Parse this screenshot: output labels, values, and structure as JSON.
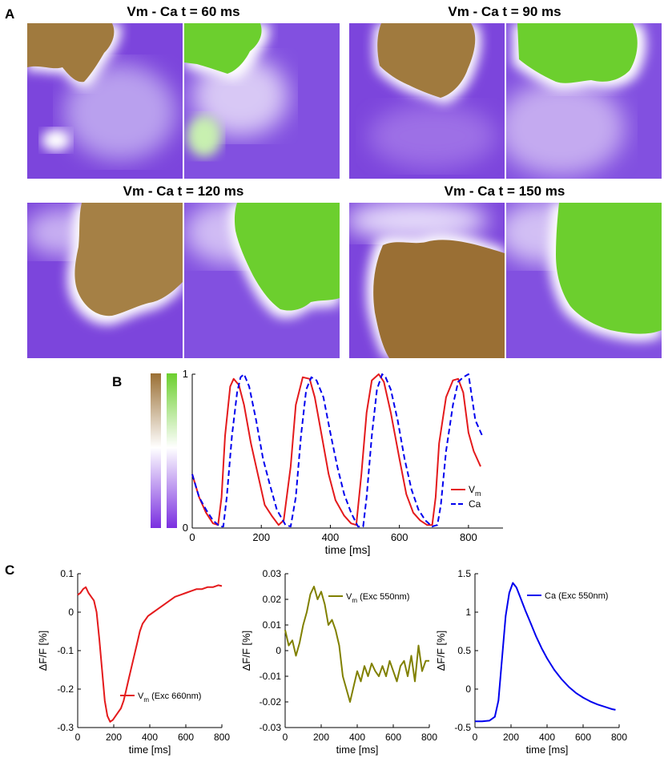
{
  "panel_labels": {
    "a": "A",
    "b": "B",
    "c": "C"
  },
  "panel_a": {
    "panels": [
      {
        "title": "Vm - Ca  t = 60 ms"
      },
      {
        "title": "Vm - Ca  t = 90 ms"
      },
      {
        "title": "Vm - Ca  t = 120 ms"
      },
      {
        "title": "Vm - Ca  t = 150 ms"
      }
    ],
    "colors": {
      "vm": "#9a6f34",
      "ca": "#6ccf2e",
      "low": "#7a3fd8",
      "mid": "#ffffff"
    }
  },
  "chart_data": [
    {
      "type": "line",
      "id": "B",
      "xlabel": "time [ms]",
      "ylabel": "",
      "xlim": [
        0,
        900
      ],
      "ylim": [
        0,
        1
      ],
      "xticks": [
        "0",
        "200",
        "400",
        "600",
        "800"
      ],
      "yticks": [
        "0",
        "1"
      ],
      "legend": "bottom-right",
      "series": [
        {
          "name": "V",
          "sub": "m",
          "color": "#e41a1c",
          "dash": "solid",
          "x": [
            0,
            20,
            40,
            60,
            75,
            85,
            95,
            110,
            120,
            135,
            150,
            170,
            190,
            210,
            230,
            250,
            265,
            285,
            300,
            320,
            340,
            355,
            375,
            395,
            415,
            440,
            460,
            475,
            490,
            505,
            520,
            540,
            555,
            575,
            600,
            620,
            640,
            660,
            680,
            695,
            705,
            715,
            735,
            755,
            770,
            785,
            800,
            815,
            835
          ],
          "y": [
            0.35,
            0.2,
            0.1,
            0.03,
            0.02,
            0.2,
            0.6,
            0.92,
            0.97,
            0.93,
            0.8,
            0.55,
            0.35,
            0.15,
            0.08,
            0.02,
            0.05,
            0.4,
            0.8,
            0.98,
            0.97,
            0.85,
            0.6,
            0.35,
            0.18,
            0.08,
            0.03,
            0.02,
            0.35,
            0.75,
            0.96,
            1.0,
            0.95,
            0.75,
            0.45,
            0.22,
            0.1,
            0.05,
            0.02,
            0.02,
            0.2,
            0.55,
            0.85,
            0.96,
            0.97,
            0.88,
            0.62,
            0.5,
            0.4
          ]
        },
        {
          "name": "Ca",
          "color": "#0000ee",
          "dash": "dashed",
          "x": [
            0,
            20,
            40,
            60,
            80,
            90,
            100,
            115,
            130,
            140,
            150,
            165,
            185,
            205,
            225,
            245,
            270,
            285,
            300,
            315,
            330,
            345,
            360,
            380,
            400,
            420,
            440,
            460,
            480,
            495,
            505,
            520,
            535,
            550,
            560,
            575,
            595,
            615,
            635,
            655,
            675,
            695,
            710,
            720,
            735,
            755,
            770,
            785,
            800,
            820,
            840
          ],
          "y": [
            0.35,
            0.2,
            0.12,
            0.05,
            0.01,
            0.01,
            0.2,
            0.6,
            0.88,
            0.98,
            1.0,
            0.92,
            0.7,
            0.45,
            0.28,
            0.12,
            0.02,
            0.01,
            0.2,
            0.6,
            0.9,
            0.98,
            0.96,
            0.85,
            0.62,
            0.4,
            0.22,
            0.1,
            0.01,
            0.01,
            0.2,
            0.6,
            0.9,
            1.0,
            0.98,
            0.9,
            0.7,
            0.45,
            0.25,
            0.12,
            0.05,
            0.01,
            0.02,
            0.15,
            0.5,
            0.8,
            0.95,
            0.98,
            1.0,
            0.7,
            0.6
          ]
        }
      ]
    },
    {
      "type": "line",
      "id": "C1",
      "xlabel": "time [ms]",
      "ylabel": "ΔF/F [%]",
      "xlim": [
        0,
        800
      ],
      "ylim": [
        -0.3,
        0.1
      ],
      "xticks": [
        "0",
        "200",
        "400",
        "600",
        "800"
      ],
      "yticks": [
        "0.1",
        "0",
        "-0.1",
        "-0.2",
        "-0.3"
      ],
      "legend": "bottom-right",
      "series": [
        {
          "name": "V",
          "sub": "m",
          "suffix": " (Exc 660nm)",
          "color": "#e41a1c",
          "x": [
            0,
            15,
            30,
            45,
            60,
            75,
            90,
            105,
            120,
            135,
            150,
            165,
            180,
            195,
            210,
            225,
            240,
            255,
            270,
            285,
            300,
            315,
            330,
            345,
            360,
            390,
            420,
            450,
            480,
            510,
            540,
            570,
            600,
            630,
            660,
            690,
            720,
            750,
            780,
            800
          ],
          "y": [
            0.045,
            0.05,
            0.06,
            0.065,
            0.05,
            0.04,
            0.03,
            0.0,
            -0.07,
            -0.15,
            -0.23,
            -0.27,
            -0.285,
            -0.28,
            -0.27,
            -0.26,
            -0.25,
            -0.23,
            -0.2,
            -0.17,
            -0.14,
            -0.11,
            -0.08,
            -0.05,
            -0.03,
            -0.01,
            0.0,
            0.01,
            0.02,
            0.03,
            0.04,
            0.045,
            0.05,
            0.055,
            0.06,
            0.06,
            0.065,
            0.065,
            0.07,
            0.068
          ]
        }
      ]
    },
    {
      "type": "line",
      "id": "C2",
      "xlabel": "time [ms]",
      "ylabel": "ΔF/F [%]",
      "xlim": [
        0,
        800
      ],
      "ylim": [
        -0.03,
        0.03
      ],
      "xticks": [
        "0",
        "200",
        "400",
        "600",
        "800"
      ],
      "yticks": [
        "0.03",
        "0.02",
        "0.01",
        "0",
        "-0.01",
        "-0.02",
        "-0.03"
      ],
      "legend": "top-right",
      "series": [
        {
          "name": "V",
          "sub": "m",
          "suffix": " (Exc 550nm)",
          "color": "#808000",
          "x": [
            0,
            20,
            40,
            60,
            80,
            100,
            120,
            140,
            160,
            180,
            200,
            220,
            240,
            260,
            280,
            300,
            320,
            340,
            360,
            380,
            400,
            420,
            440,
            460,
            480,
            500,
            520,
            540,
            560,
            580,
            600,
            620,
            640,
            660,
            680,
            700,
            720,
            740,
            760,
            780,
            800
          ],
          "y": [
            0.008,
            0.002,
            0.004,
            -0.002,
            0.003,
            0.01,
            0.015,
            0.022,
            0.025,
            0.02,
            0.023,
            0.018,
            0.01,
            0.012,
            0.008,
            0.002,
            -0.01,
            -0.015,
            -0.02,
            -0.014,
            -0.008,
            -0.012,
            -0.006,
            -0.01,
            -0.005,
            -0.008,
            -0.01,
            -0.006,
            -0.01,
            -0.004,
            -0.008,
            -0.012,
            -0.006,
            -0.004,
            -0.01,
            -0.002,
            -0.012,
            0.002,
            -0.008,
            -0.004,
            -0.004
          ]
        }
      ]
    },
    {
      "type": "line",
      "id": "C3",
      "xlabel": "time [ms]",
      "ylabel": "ΔF/F [%]",
      "xlim": [
        0,
        800
      ],
      "ylim": [
        -0.5,
        1.5
      ],
      "xticks": [
        "0",
        "200",
        "400",
        "600",
        "800"
      ],
      "yticks": [
        "1.5",
        "1",
        "0.5",
        "0",
        "-0.5"
      ],
      "legend": "top-right",
      "series": [
        {
          "name": "Ca",
          "suffix": " (Exc 550nm)",
          "color": "#0000ee",
          "x": [
            0,
            40,
            80,
            110,
            130,
            150,
            170,
            190,
            210,
            230,
            250,
            280,
            310,
            340,
            370,
            400,
            440,
            480,
            520,
            560,
            600,
            640,
            680,
            720,
            760,
            780
          ],
          "y": [
            -0.42,
            -0.42,
            -0.41,
            -0.36,
            -0.15,
            0.4,
            0.95,
            1.25,
            1.38,
            1.32,
            1.2,
            1.02,
            0.85,
            0.68,
            0.53,
            0.4,
            0.25,
            0.13,
            0.03,
            -0.05,
            -0.11,
            -0.16,
            -0.2,
            -0.23,
            -0.26,
            -0.27
          ]
        }
      ]
    }
  ]
}
